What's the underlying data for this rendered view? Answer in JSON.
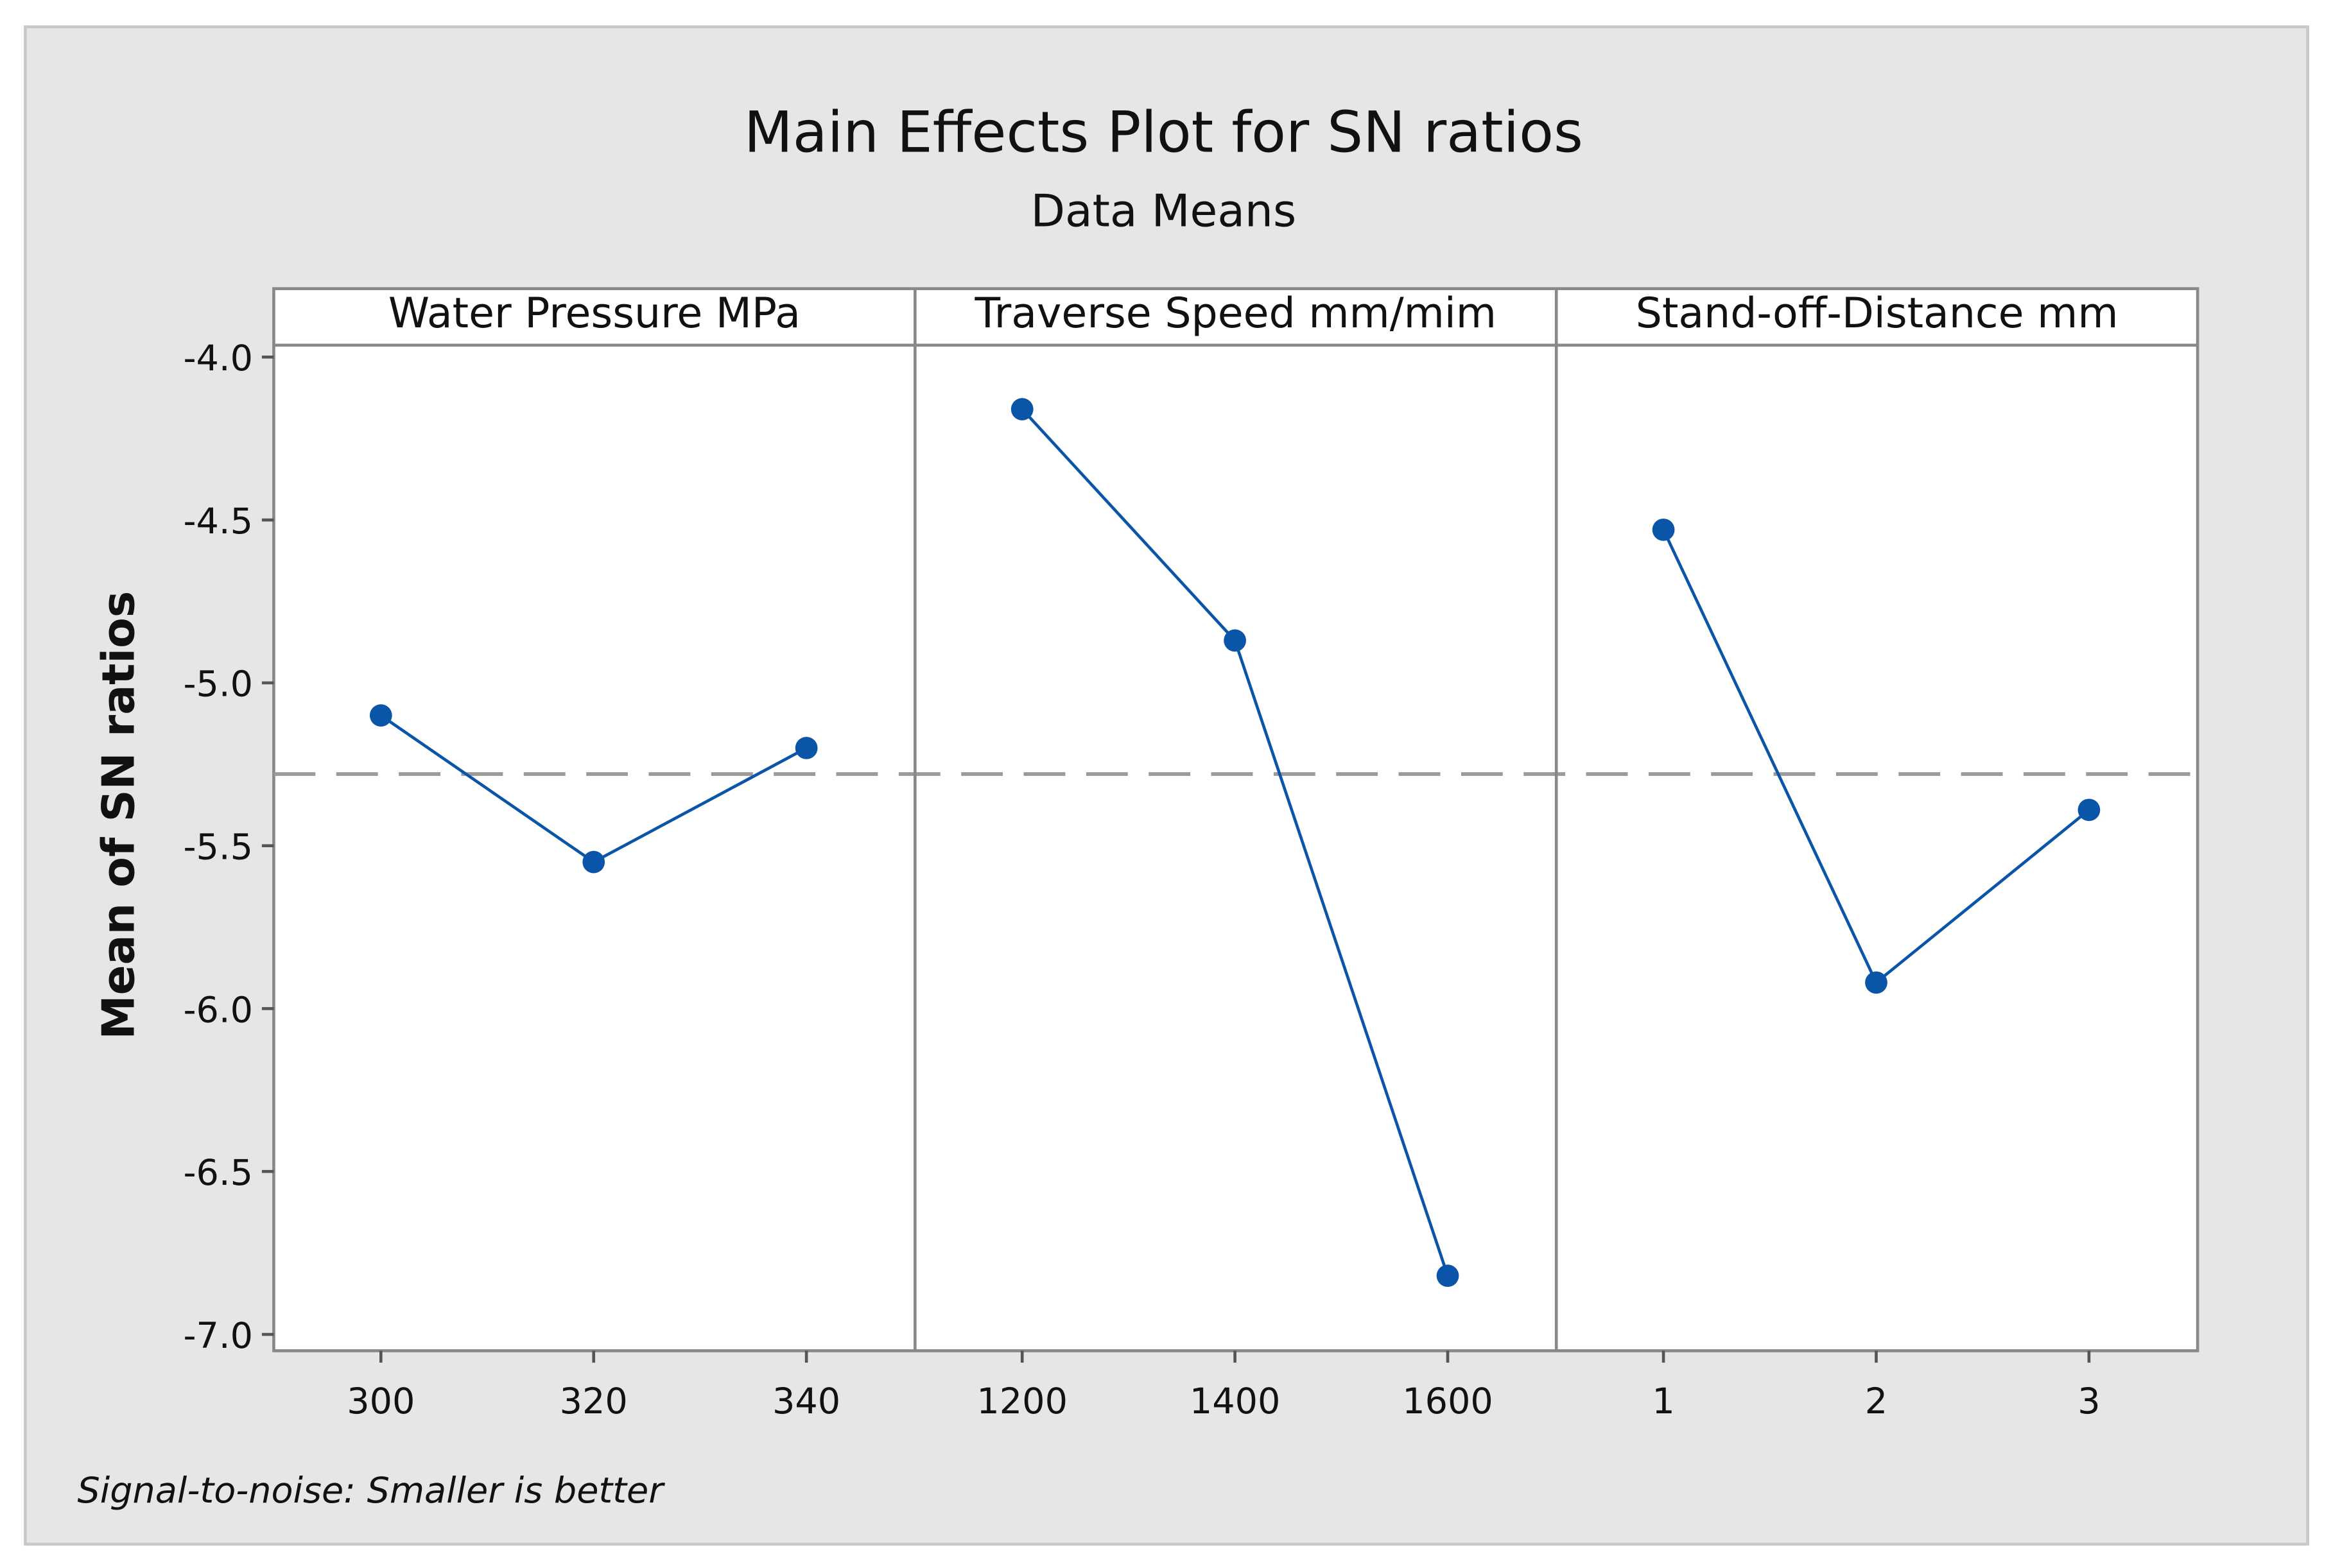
{
  "chart_data": {
    "type": "line",
    "title": "Main Effects Plot for SN ratios",
    "subtitle": "Data Means",
    "ylabel": "Mean of SN ratios",
    "ylim": [
      -7.0,
      -4.0
    ],
    "yticks": [
      "-4.0",
      "-4.5",
      "-5.0",
      "-5.5",
      "-6.0",
      "-6.5",
      "-7.0"
    ],
    "ytick_values": [
      -4.0,
      -4.5,
      -5.0,
      -5.5,
      -6.0,
      -6.5,
      -7.0
    ],
    "reference_line": -5.28,
    "footnote": "Signal-to-noise: Smaller is better",
    "panels": [
      {
        "label": "Water Pressure MPa",
        "categories": [
          "300",
          "320",
          "340"
        ],
        "values": [
          -5.1,
          -5.55,
          -5.2
        ]
      },
      {
        "label": "Traverse Speed mm/mim",
        "categories": [
          "1200",
          "1400",
          "1600"
        ],
        "values": [
          -4.16,
          -4.87,
          -6.82
        ]
      },
      {
        "label": "Stand-off-Distance mm",
        "categories": [
          "1",
          "2",
          "3"
        ],
        "values": [
          -4.53,
          -5.92,
          -5.39
        ]
      }
    ],
    "grid": false,
    "colors": {
      "series": "#0b55a8",
      "reference": "#9a9a9a",
      "background": "#e6e6e6"
    }
  }
}
